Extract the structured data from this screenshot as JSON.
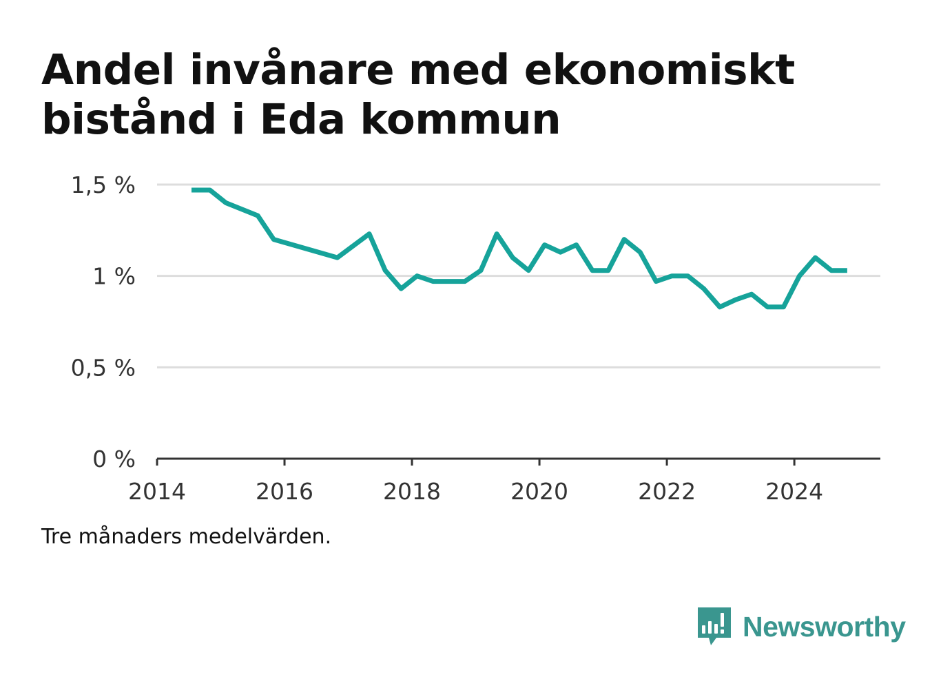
{
  "title_line1": "Andel invånare med ekonomiskt",
  "title_line2": "bistånd i Eda kommun",
  "note": "Tre månaders medelvärden.",
  "brand": {
    "name": "Newsworthy",
    "logo_icon": "bar-chart-speech-bubble-icon",
    "color": "#3a968f"
  },
  "chart_data": {
    "type": "line",
    "title": "Andel invånare med ekonomiskt bistånd i Eda kommun",
    "xlabel": "",
    "ylabel": "",
    "line_color": "#16a39a",
    "xlim": [
      2014,
      2025.35
    ],
    "ylim": [
      0,
      1.5
    ],
    "grid": true,
    "x_ticks": [
      {
        "value": 2014,
        "label": "2014"
      },
      {
        "value": 2016,
        "label": "2016"
      },
      {
        "value": 2018,
        "label": "2018"
      },
      {
        "value": 2020,
        "label": "2020"
      },
      {
        "value": 2022,
        "label": "2022"
      },
      {
        "value": 2024,
        "label": "2024"
      }
    ],
    "y_ticks": [
      {
        "value": 0,
        "label": "0 %"
      },
      {
        "value": 0.5,
        "label": "0,5 %"
      },
      {
        "value": 1,
        "label": "1 %"
      },
      {
        "value": 1.5,
        "label": "1,5 %"
      }
    ],
    "series": [
      {
        "x": [
          2014.54,
          2014.83,
          2015.08,
          2015.58,
          2015.83,
          2016.83,
          2017.33,
          2017.58,
          2017.83,
          2018.08,
          2018.33,
          2018.58,
          2018.83,
          2019.08,
          2019.33,
          2019.58,
          2019.83,
          2020.08,
          2020.33,
          2020.58,
          2020.83,
          2021.08,
          2021.33,
          2021.58,
          2021.83,
          2022.08,
          2022.33,
          2022.58,
          2022.83,
          2023.08,
          2023.33,
          2023.58,
          2023.83,
          2024.08,
          2024.33,
          2024.58,
          2024.83
        ],
        "y": [
          1.47,
          1.47,
          1.4,
          1.33,
          1.2,
          1.1,
          1.23,
          1.03,
          0.93,
          1.0,
          0.97,
          0.97,
          0.97,
          1.03,
          1.23,
          1.1,
          1.03,
          1.17,
          1.13,
          1.17,
          1.03,
          1.03,
          1.2,
          1.13,
          0.97,
          1.0,
          1.0,
          0.93,
          0.83,
          0.87,
          0.9,
          0.83,
          0.83,
          1.0,
          1.1,
          1.03,
          1.03
        ]
      }
    ]
  }
}
